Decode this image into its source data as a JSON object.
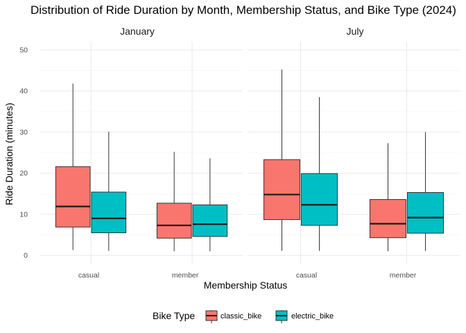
{
  "colors": {
    "classic_bike": "#F8766D",
    "electric_bike": "#00BFC4",
    "grid_major": "#EBEBEB",
    "grid_minor": "#F5F5F5",
    "outline": "#333333"
  },
  "chart_data": {
    "type": "boxplot",
    "title": "Distribution of Ride Duration by Month, Membership Status, and Bike Type (2024)",
    "xlabel": "Membership Status",
    "ylabel": "Ride Duration (minutes)",
    "ylim": [
      -2,
      52
    ],
    "yticks": [
      0,
      10,
      20,
      30,
      40,
      50
    ],
    "categories": [
      "casual",
      "member"
    ],
    "grid": true,
    "legend": {
      "title": "Bike Type",
      "position": "bottom",
      "entries": [
        "classic_bike",
        "electric_bike"
      ]
    },
    "panels": [
      {
        "label": "January",
        "groups": [
          {
            "category": "casual",
            "series": "classic_bike",
            "min": 1.3,
            "q1": 6.9,
            "median": 11.9,
            "q3": 21.6,
            "max": 41.8
          },
          {
            "category": "casual",
            "series": "electric_bike",
            "min": 1.1,
            "q1": 5.5,
            "median": 9.0,
            "q3": 15.4,
            "max": 30.1
          },
          {
            "category": "member",
            "series": "classic_bike",
            "min": 1.0,
            "q1": 4.2,
            "median": 7.3,
            "q3": 12.7,
            "max": 25.2
          },
          {
            "category": "member",
            "series": "electric_bike",
            "min": 1.0,
            "q1": 4.6,
            "median": 7.6,
            "q3": 12.3,
            "max": 23.6
          }
        ]
      },
      {
        "label": "July",
        "groups": [
          {
            "category": "casual",
            "series": "classic_bike",
            "min": 1.1,
            "q1": 8.7,
            "median": 14.8,
            "q3": 23.3,
            "max": 45.2
          },
          {
            "category": "casual",
            "series": "electric_bike",
            "min": 1.1,
            "q1": 7.3,
            "median": 12.3,
            "q3": 19.9,
            "max": 38.5
          },
          {
            "category": "member",
            "series": "classic_bike",
            "min": 1.0,
            "q1": 4.3,
            "median": 7.7,
            "q3": 13.6,
            "max": 27.3
          },
          {
            "category": "member",
            "series": "electric_bike",
            "min": 1.1,
            "q1": 5.4,
            "median": 9.2,
            "q3": 15.3,
            "max": 30.0
          }
        ]
      }
    ]
  }
}
